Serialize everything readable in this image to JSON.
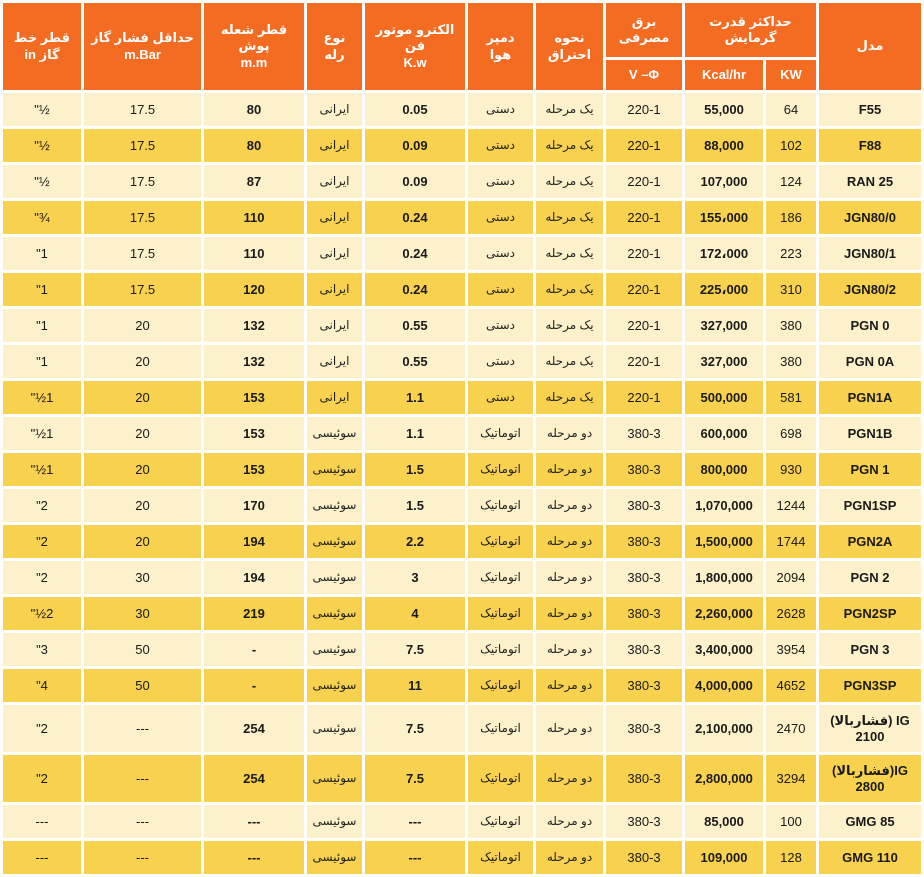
{
  "table_title_note": "gas burner specification table (Persian, RTL)",
  "colors": {
    "header_bg": "#F36C21",
    "row_light": "#FCF1CB",
    "row_dark": "#F8D24E",
    "gap": "#FFFFFF",
    "header_text": "#FFFFFF",
    "cell_text": "#1A1A1A"
  },
  "header": {
    "model": "مدل",
    "power_group": "حداکثر قدرت\nگرمایش",
    "kcal": "Kcal/hr",
    "kw": "KW",
    "power_supply": "برق\nمصرفی",
    "power_supply_unit": "V –Φ",
    "combustion": "نحوه\nاحتراق",
    "damper": "دمپر\nهوا",
    "motor": "الکترو موتور فن\nK.w",
    "relay": "نوع\nرله",
    "flame_tube": "قطر شعله پوش\nm.m",
    "min_pressure": "حداقل فشار گاز\nm.Bar",
    "gas_line": "قطر خط\nگاز in"
  },
  "rows": [
    {
      "model": "F55",
      "kw": "64",
      "kcal": "55,000",
      "vphi": "220-1",
      "combustion": "یک مرحله",
      "damper": "دستی",
      "motor": "0.05",
      "relay": "ایرانی",
      "flame": "80",
      "pressure": "17.5",
      "gasline": "\"½",
      "shade": "light"
    },
    {
      "model": "F88",
      "kw": "102",
      "kcal": "88,000",
      "vphi": "220-1",
      "combustion": "یک مرحله",
      "damper": "دستی",
      "motor": "0.09",
      "relay": "ایرانی",
      "flame": "80",
      "pressure": "17.5",
      "gasline": "\"½",
      "shade": "dark"
    },
    {
      "model": "RAN 25",
      "kw": "124",
      "kcal": "107,000",
      "vphi": "220-1",
      "combustion": "یک مرحله",
      "damper": "دستی",
      "motor": "0.09",
      "relay": "ایرانی",
      "flame": "87",
      "pressure": "17.5",
      "gasline": "\"½",
      "shade": "light"
    },
    {
      "model": "JGN80/0",
      "kw": "186",
      "kcal": "155،000",
      "vphi": "220-1",
      "combustion": "یک مرحله",
      "damper": "دستی",
      "motor": "0.24",
      "relay": "ایرانی",
      "flame": "110",
      "pressure": "17.5",
      "gasline": "\"¾",
      "shade": "dark"
    },
    {
      "model": "JGN80/1",
      "kw": "223",
      "kcal": "172،000",
      "vphi": "220-1",
      "combustion": "یک مرحله",
      "damper": "دستی",
      "motor": "0.24",
      "relay": "ایرانی",
      "flame": "110",
      "pressure": "17.5",
      "gasline": "\"1",
      "shade": "light"
    },
    {
      "model": "JGN80/2",
      "kw": "310",
      "kcal": "225،000",
      "vphi": "220-1",
      "combustion": "یک مرحله",
      "damper": "دستی",
      "motor": "0.24",
      "relay": "ایرانی",
      "flame": "120",
      "pressure": "17.5",
      "gasline": "\"1",
      "shade": "dark"
    },
    {
      "model": "PGN 0",
      "kw": "380",
      "kcal": "327,000",
      "vphi": "220-1",
      "combustion": "یک مرحله",
      "damper": "دستی",
      "motor": "0.55",
      "relay": "ایرانی",
      "flame": "132",
      "pressure": "20",
      "gasline": "\"1",
      "shade": "light"
    },
    {
      "model": "PGN 0A",
      "kw": "380",
      "kcal": "327,000",
      "vphi": "220-1",
      "combustion": "یک مرحله",
      "damper": "دستی",
      "motor": "0.55",
      "relay": "ایرانی",
      "flame": "132",
      "pressure": "20",
      "gasline": "\"1",
      "shade": "light"
    },
    {
      "model": "PGN1A",
      "kw": "581",
      "kcal": "500,000",
      "vphi": "220-1",
      "combustion": "یک مرحله",
      "damper": "دستی",
      "motor": "1.1",
      "relay": "ایرانی",
      "flame": "153",
      "pressure": "20",
      "gasline": "\"½1",
      "shade": "dark"
    },
    {
      "model": "PGN1B",
      "kw": "698",
      "kcal": "600,000",
      "vphi": "380-3",
      "combustion": "دو مرحله",
      "damper": "اتوماتیک",
      "motor": "1.1",
      "relay": "سوئیسی",
      "flame": "153",
      "pressure": "20",
      "gasline": "\"½1",
      "shade": "light"
    },
    {
      "model": "PGN 1",
      "kw": "930",
      "kcal": "800,000",
      "vphi": "380-3",
      "combustion": "دو مرحله",
      "damper": "اتوماتیک",
      "motor": "1.5",
      "relay": "سوئیسی",
      "flame": "153",
      "pressure": "20",
      "gasline": "\"½1",
      "shade": "dark"
    },
    {
      "model": "PGN1SP",
      "kw": "1244",
      "kcal": "1,070,000",
      "vphi": "380-3",
      "combustion": "دو مرحله",
      "damper": "اتوماتیک",
      "motor": "1.5",
      "relay": "سوئیسی",
      "flame": "170",
      "pressure": "20",
      "gasline": "\"2",
      "shade": "light"
    },
    {
      "model": "PGN2A",
      "kw": "1744",
      "kcal": "1,500,000",
      "vphi": "380-3",
      "combustion": "دو مرحله",
      "damper": "اتوماتیک",
      "motor": "2.2",
      "relay": "سوئیسی",
      "flame": "194",
      "pressure": "20",
      "gasline": "\"2",
      "shade": "dark"
    },
    {
      "model": "PGN 2",
      "kw": "2094",
      "kcal": "1,800,000",
      "vphi": "380-3",
      "combustion": "دو مرحله",
      "damper": "اتوماتیک",
      "motor": "3",
      "relay": "سوئیسی",
      "flame": "194",
      "pressure": "30",
      "gasline": "\"2",
      "shade": "light"
    },
    {
      "model": "PGN2SP",
      "kw": "2628",
      "kcal": "2,260,000",
      "vphi": "380-3",
      "combustion": "دو مرحله",
      "damper": "اتوماتیک",
      "motor": "4",
      "relay": "سوئیسی",
      "flame": "219",
      "pressure": "30",
      "gasline": "\"½2",
      "shade": "dark"
    },
    {
      "model": "PGN 3",
      "kw": "3954",
      "kcal": "3,400,000",
      "vphi": "380-3",
      "combustion": "دو مرحله",
      "damper": "اتوماتیک",
      "motor": "7.5",
      "relay": "سوئیسی",
      "flame": "-",
      "pressure": "50",
      "gasline": "\"3",
      "shade": "light"
    },
    {
      "model": "PGN3SP",
      "kw": "4652",
      "kcal": "4,000,000",
      "vphi": "380-3",
      "combustion": "دو مرحله",
      "damper": "اتوماتیک",
      "motor": "11",
      "relay": "سوئیسی",
      "flame": "-",
      "pressure": "50",
      "gasline": "\"4",
      "shade": "dark"
    },
    {
      "model": "IG (فشاربالا)",
      "model2": "2100",
      "kw": "2470",
      "kcal": "2,100,000",
      "vphi": "380-3",
      "combustion": "دو مرحله",
      "damper": "اتوماتیک",
      "motor": "7.5",
      "relay": "سوئیسی",
      "flame": "254",
      "pressure": "---",
      "gasline": "\"2",
      "shade": "light",
      "tall": true
    },
    {
      "model": "IG(فشاربالا)",
      "model2": "2800",
      "kw": "3294",
      "kcal": "2,800,000",
      "vphi": "380-3",
      "combustion": "دو مرحله",
      "damper": "اتوماتیک",
      "motor": "7.5",
      "relay": "سوئیسی",
      "flame": "254",
      "pressure": "---",
      "gasline": "\"2",
      "shade": "dark",
      "tall": true
    },
    {
      "model": "GMG 85",
      "kw": "100",
      "kcal": "85,000",
      "vphi": "380-3",
      "combustion": "دو مرحله",
      "damper": "اتوماتیک",
      "motor": "---",
      "relay": "سوئیسی",
      "flame": "---",
      "pressure": "---",
      "gasline": "---",
      "shade": "light"
    },
    {
      "model": "GMG 110",
      "kw": "128",
      "kcal": "109,000",
      "vphi": "380-3",
      "combustion": "دو مرحله",
      "damper": "اتوماتیک",
      "motor": "---",
      "relay": "سوئیسی",
      "flame": "---",
      "pressure": "---",
      "gasline": "---",
      "shade": "dark"
    }
  ]
}
